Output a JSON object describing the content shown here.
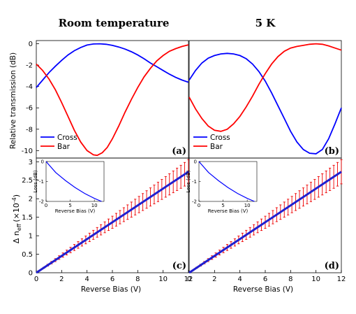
{
  "titles": {
    "left": "Room temperature",
    "right": "5 K"
  },
  "top_ylabel": "Relative transmission (dB)",
  "bottom_ylabel_main": "Δ n",
  "bottom_ylabel_sub": "eff",
  "bottom_ylabel_unit": "(×10",
  "bottom_ylabel_exp": "-4",
  "bottom_ylabel_close": ")",
  "xlabel": "Reverse Bias (V)",
  "inset_xlabel": "Reverse Bias (V)",
  "inset_ylabel": "Loss (dB)",
  "colors": {
    "cross": "#0000ff",
    "bar": "#ff0000",
    "fit": "#1f1fd0",
    "err": "#ee0000"
  },
  "chart_data": [
    {
      "type": "line",
      "panel": "(a)",
      "xlim": [
        0,
        12
      ],
      "ylim": [
        -10.7,
        0.3
      ],
      "yticks": [
        0,
        -2,
        -4,
        -6,
        -8,
        -10
      ],
      "legend": {
        "position": "bottom-left"
      },
      "series": [
        {
          "name": "Cross",
          "color": "#0000ff",
          "x": [
            0,
            0.5,
            1,
            1.5,
            2,
            2.5,
            3,
            3.5,
            4,
            4.5,
            5,
            5.5,
            6,
            6.5,
            7,
            7.5,
            8,
            8.5,
            9,
            9.5,
            10,
            10.5,
            11,
            11.5,
            12
          ],
          "y": [
            -4.1,
            -3.4,
            -2.7,
            -2.1,
            -1.55,
            -1.05,
            -0.65,
            -0.35,
            -0.12,
            -0.02,
            0,
            -0.05,
            -0.15,
            -0.3,
            -0.5,
            -0.75,
            -1.05,
            -1.4,
            -1.8,
            -2.15,
            -2.5,
            -2.85,
            -3.15,
            -3.4,
            -3.6
          ]
        },
        {
          "name": "Bar",
          "color": "#ff0000",
          "x": [
            0,
            0.5,
            1,
            1.5,
            2,
            2.5,
            3,
            3.5,
            4,
            4.5,
            4.8,
            5.2,
            5.6,
            6,
            6.5,
            7,
            7.5,
            8,
            8.5,
            9,
            9.5,
            10,
            10.5,
            11,
            11.5,
            12
          ],
          "y": [
            -1.9,
            -2.5,
            -3.3,
            -4.3,
            -5.5,
            -6.8,
            -8.1,
            -9.2,
            -10.0,
            -10.4,
            -10.45,
            -10.2,
            -9.7,
            -8.9,
            -7.7,
            -6.4,
            -5.2,
            -4.1,
            -3.1,
            -2.3,
            -1.6,
            -1.1,
            -0.7,
            -0.45,
            -0.25,
            -0.1
          ]
        }
      ]
    },
    {
      "type": "line",
      "panel": "(b)",
      "xlim": [
        0,
        12
      ],
      "ylim": [
        -10.7,
        0.3
      ],
      "legend": {
        "position": "bottom-left"
      },
      "series": [
        {
          "name": "Cross",
          "color": "#0000ff",
          "x": [
            0,
            0.5,
            1,
            1.5,
            2,
            2.5,
            3,
            3.5,
            4,
            4.5,
            5,
            5.5,
            6,
            6.5,
            7,
            7.5,
            8,
            8.5,
            9,
            9.5,
            10,
            10.5,
            11,
            11.5,
            12
          ],
          "y": [
            -3.4,
            -2.5,
            -1.8,
            -1.35,
            -1.1,
            -0.95,
            -0.9,
            -0.95,
            -1.1,
            -1.4,
            -1.9,
            -2.6,
            -3.5,
            -4.6,
            -5.8,
            -7.0,
            -8.2,
            -9.2,
            -9.9,
            -10.25,
            -10.3,
            -9.9,
            -8.9,
            -7.5,
            -6.0
          ]
        },
        {
          "name": "Bar",
          "color": "#ff0000",
          "x": [
            0,
            0.5,
            1,
            1.5,
            2,
            2.5,
            3,
            3.5,
            4,
            4.5,
            5,
            5.5,
            6,
            6.5,
            7,
            7.5,
            8,
            8.5,
            9,
            9.5,
            10,
            10.5,
            11,
            11.5,
            12
          ],
          "y": [
            -5.0,
            -6.1,
            -7.0,
            -7.7,
            -8.1,
            -8.2,
            -8.0,
            -7.5,
            -6.8,
            -5.9,
            -4.9,
            -3.8,
            -2.8,
            -1.9,
            -1.2,
            -0.7,
            -0.4,
            -0.25,
            -0.15,
            -0.05,
            0,
            -0.05,
            -0.2,
            -0.4,
            -0.6
          ]
        }
      ]
    },
    {
      "type": "line",
      "panel": "(c)",
      "xlim": [
        0,
        12
      ],
      "xticks": [
        0,
        2,
        4,
        6,
        8,
        10,
        12
      ],
      "ylim": [
        0,
        3.1
      ],
      "yticks": [
        0,
        0.5,
        1,
        1.5,
        2,
        2.5,
        3
      ],
      "series": [
        {
          "name": "Δn_eff",
          "color": "#1f1fd0",
          "x": [
            0,
            12
          ],
          "y": [
            0,
            2.73
          ],
          "err_rel": 0.12
        }
      ],
      "inset": {
        "xlim": [
          0,
          12
        ],
        "xticks": [
          0,
          5,
          10
        ],
        "ylim": [
          -2,
          0
        ],
        "yticks": [
          0,
          -1,
          -2
        ],
        "x": [
          0,
          2,
          4,
          6,
          8,
          10,
          11.5
        ],
        "y": [
          0,
          -0.55,
          -0.95,
          -1.3,
          -1.6,
          -1.85,
          -2.0
        ]
      }
    },
    {
      "type": "line",
      "panel": "(d)",
      "xlim": [
        0,
        12
      ],
      "xticks": [
        0,
        2,
        4,
        6,
        8,
        10,
        12
      ],
      "ylim": [
        0,
        3.1
      ],
      "series": [
        {
          "name": "Δn_eff",
          "color": "#1f1fd0",
          "x": [
            0,
            12
          ],
          "y": [
            0,
            2.73
          ],
          "err_rel": 0.12
        }
      ],
      "inset": {
        "xlim": [
          0,
          12
        ],
        "xticks": [
          0,
          5,
          10
        ],
        "ylim": [
          -2,
          0
        ],
        "yticks": [
          0,
          -1,
          -2
        ],
        "x": [
          0,
          2,
          4,
          6,
          8,
          10,
          11.5
        ],
        "y": [
          0,
          -0.55,
          -0.95,
          -1.3,
          -1.6,
          -1.85,
          -2.0
        ]
      }
    }
  ]
}
